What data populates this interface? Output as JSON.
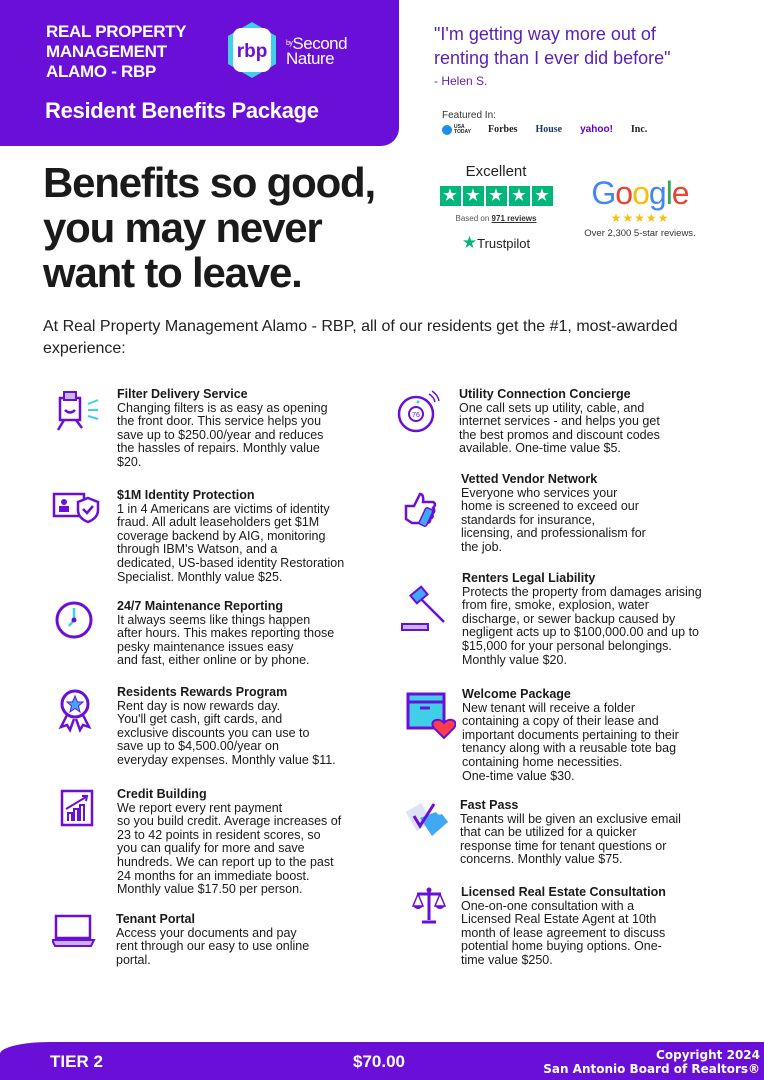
{
  "header": {
    "company": "REAL PROPERTY\nMANAGEMENT\nALAMO - RBP",
    "logo_text": "rbp",
    "logo_by": "by",
    "logo_partner": "Second\nNature",
    "subtitle": "Resident Benefits Package",
    "brand_color": "#6a0fd8"
  },
  "testimonial": {
    "quote": "\"I'm getting way more out of\nrenting than I ever did before\"",
    "author": "- Helen S."
  },
  "featured": {
    "label": "Featured In:",
    "outlets": [
      "USA TODAY",
      "Forbes",
      "House",
      "yahoo!",
      "Inc."
    ]
  },
  "headline": "Benefits so good,\nyou may never\nwant to leave.",
  "trustpilot": {
    "rating_label": "Excellent",
    "stars": 5,
    "based_prefix": "Based on",
    "reviews": "971 reviews",
    "brand": "Trustpilot",
    "color": "#00b67a"
  },
  "google": {
    "brand": "Google",
    "stars": 5,
    "reviews": "Over 2,300 5-star reviews."
  },
  "intro": "At Real Property Management Alamo - RBP, all of our residents get the #1, most-awarded experience:",
  "benefits_left": [
    {
      "icon": "filter-delivery-icon",
      "title": "Filter Delivery Service",
      "text": "Changing filters is as easy as opening\nthe front door. This service helps you\nsave up to $250.00/year and reduces\nthe hassles of repairs. Monthly value\n$20."
    },
    {
      "icon": "identity-shield-icon",
      "title": "$1M Identity Protection",
      "text": "1 in 4 Americans are victims of identity\nfraud. All adult leaseholders get $1M\ncoverage backend by AIG, monitoring\nthrough IBM's Watson, and a\ndedicated, US-based identity Restoration\nSpecialist. Monthly value $25."
    },
    {
      "icon": "clock-icon",
      "title": "24/7 Maintenance Reporting",
      "text": "It always seems like things happen\nafter hours. This makes reporting those\npesky maintenance issues easy\nand fast, either online or by phone."
    },
    {
      "icon": "award-ribbon-icon",
      "title": "Residents Rewards Program",
      "text": "Rent day is now rewards day.\nYou'll get cash, gift cards, and\nexclusive discounts you can use to\nsave up to $4,500.00/year on\neveryday expenses. Monthly value $11."
    },
    {
      "icon": "chart-growth-icon",
      "title": "Credit Building",
      "text": "We report every rent payment\nso you build credit. Average increases of\n23 to 42 points in resident scores, so\nyou can qualify for more and save\nhundreds. We can report up to the past\n24 months for an immediate boost.\nMonthly value $17.50 per person."
    },
    {
      "icon": "laptop-icon",
      "title": "Tenant Portal",
      "text": "Access your documents and pay\nrent through our easy to use online\nportal."
    }
  ],
  "benefits_right": [
    {
      "icon": "thermostat-icon",
      "title": "Utility Connection Concierge",
      "text": "One call sets up utility, cable, and\ninternet services - and helps you get\nthe best promos and discount codes\navailable. One-time value $5."
    },
    {
      "icon": "thumbs-up-icon",
      "title": "Vetted Vendor Network",
      "text": "Everyone who services your\nhome is screened to exceed our\nstandards for insurance,\nlicensing, and professionalism for\nthe job."
    },
    {
      "icon": "gavel-icon",
      "title": "Renters Legal Liability",
      "text": "Protects the property from damages arising\nfrom fire, smoke, explosion, water\ndischarge, or sewer backup caused by\nnegligent acts up to $100,000.00 and up to\n$15,000 for your personal belongings.\nMonthly value $20."
    },
    {
      "icon": "package-heart-icon",
      "title": "Welcome Package",
      "text": "New tenant will receive a folder\ncontaining a copy of their lease and\nimportant documents pertaining to their\ntenancy along with a reusable tote bag\ncontaining home necessities.\nOne-time value $30."
    },
    {
      "icon": "fast-pass-ticket-icon",
      "title": "Fast Pass",
      "text": "Tenants will be given an exclusive email\nthat can be utilized for a quicker\nresponse time for tenant questions or\nconcerns. Monthly value $75."
    },
    {
      "icon": "scales-icon",
      "title": "Licensed Real Estate Consultation",
      "text": "One-on-one consultation with a\nLicensed Real Estate Agent at 10th\nmonth of lease agreement to discuss\npotential home buying options. One-\ntime value $250."
    }
  ],
  "footer": {
    "tier": "TIER 2",
    "price": "$70.00",
    "copyright": "Copyright 2024\nSan Antonio Board of Realtors®"
  }
}
